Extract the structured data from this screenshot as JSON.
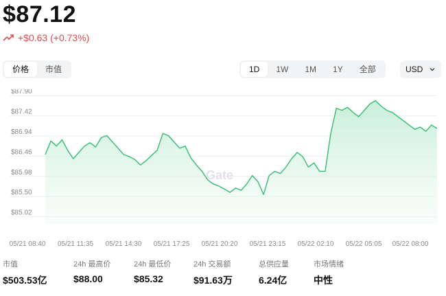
{
  "header": {
    "price": "$87.12",
    "change": "+$0.63 (+0.73%)"
  },
  "tabs_left": [
    {
      "label": "价格",
      "active": true
    },
    {
      "label": "市值",
      "active": false
    }
  ],
  "tabs_range": [
    {
      "label": "1D",
      "active": true
    },
    {
      "label": "1W",
      "active": false
    },
    {
      "label": "1M",
      "active": false
    },
    {
      "label": "1Y",
      "active": false
    },
    {
      "label": "全部",
      "active": false
    }
  ],
  "currency": {
    "selected": "USD"
  },
  "watermark": "Gate",
  "colors": {
    "up": "#e5484d",
    "line": "#2fbf71",
    "fill_top": "#c5eed6"
  },
  "chart_data": {
    "type": "area",
    "ylim": [
      84.85,
      88.05
    ],
    "yticks": [
      "$87.90",
      "$87.42",
      "$86.94",
      "$86.46",
      "$85.98",
      "$85.50",
      "$85.02"
    ],
    "ytick_values": [
      87.9,
      87.42,
      86.94,
      86.46,
      85.98,
      85.5,
      85.02
    ],
    "xticks": [
      "05/21 08:40",
      "05/21 11:35",
      "05/21 14:30",
      "05/21 17:25",
      "05/21 20:20",
      "05/21 23:15",
      "05/22 02:10",
      "05/22 05:05",
      "05/22 08:00"
    ],
    "values": [
      86.5,
      86.82,
      86.7,
      86.85,
      86.6,
      86.4,
      86.55,
      86.7,
      86.78,
      86.68,
      86.9,
      86.95,
      86.8,
      86.65,
      86.5,
      86.45,
      86.38,
      86.25,
      86.35,
      86.48,
      86.6,
      87.0,
      86.95,
      86.8,
      86.65,
      86.7,
      86.42,
      86.25,
      86.1,
      85.9,
      85.8,
      85.75,
      85.68,
      85.6,
      85.7,
      85.65,
      85.8,
      86.0,
      85.85,
      85.55,
      86.0,
      86.1,
      86.05,
      86.2,
      86.4,
      86.55,
      86.45,
      86.2,
      86.3,
      86.1,
      86.1,
      87.0,
      87.6,
      87.55,
      87.62,
      87.5,
      87.4,
      87.55,
      87.7,
      87.78,
      87.65,
      87.55,
      87.5,
      87.4,
      87.3,
      87.2,
      87.1,
      87.15,
      87.05,
      87.2,
      87.12
    ]
  },
  "stats": [
    {
      "label": "市值",
      "value": "$503.53亿"
    },
    {
      "label": "24h 最高价",
      "value": "$88.00"
    },
    {
      "label": "24h 最低价",
      "value": "$85.32"
    },
    {
      "label": "24h 交易额",
      "value": "$91.63万"
    },
    {
      "label": "总供应量",
      "value": "6.24亿"
    },
    {
      "label": "市场情绪",
      "value": "中性"
    }
  ]
}
